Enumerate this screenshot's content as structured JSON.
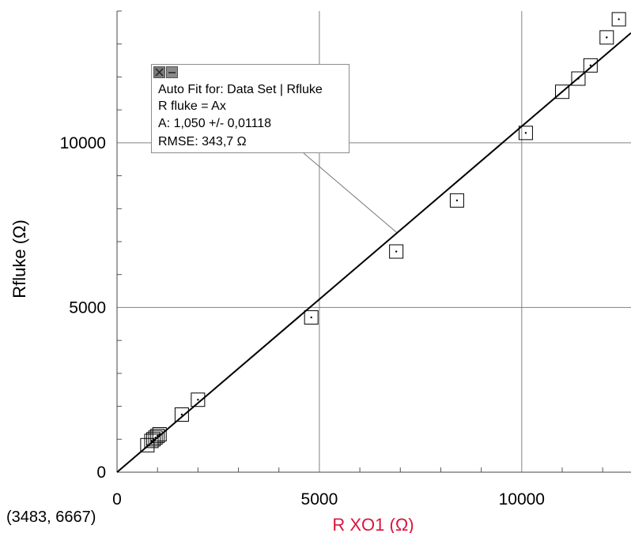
{
  "chart_data": {
    "type": "scatter",
    "xlabel": "R XO1 (Ω)",
    "ylabel": "Rfluke (Ω)",
    "xlim": [
      0,
      12700
    ],
    "ylim": [
      0,
      14000
    ],
    "x_ticks": [
      0,
      5000,
      10000
    ],
    "y_ticks": [
      0,
      5000,
      10000
    ],
    "grid": true,
    "colors": {
      "xlabel": "#dc143c",
      "ylabel": "#000000",
      "grid": "#808080",
      "fit_line": "#000000"
    },
    "series": [
      {
        "x": [
          750,
          850,
          900,
          950,
          1000,
          1050,
          1600,
          2000,
          4800,
          6900,
          8400,
          10100,
          11000,
          11400,
          11700,
          12100,
          12400
        ],
        "y": [
          820,
          950,
          1000,
          1050,
          1100,
          1150,
          1750,
          2200,
          4700,
          6700,
          8250,
          10300,
          11550,
          11950,
          12350,
          13200,
          13750
        ]
      }
    ],
    "fit": {
      "model": "R fluke = Ax",
      "A": 1.05,
      "x_range": [
        0,
        12700
      ]
    }
  },
  "fit_box": {
    "title": "Auto Fit for: Data Set | Rfluke",
    "equation": "R fluke = Ax",
    "param": "A: 1,050 +/- 0,01118",
    "rmse": "RMSE: 343,7 Ω",
    "close_icon": "close-icon",
    "minimize_icon": "minimize-icon"
  },
  "coord_readout": "(3483, 6667)"
}
